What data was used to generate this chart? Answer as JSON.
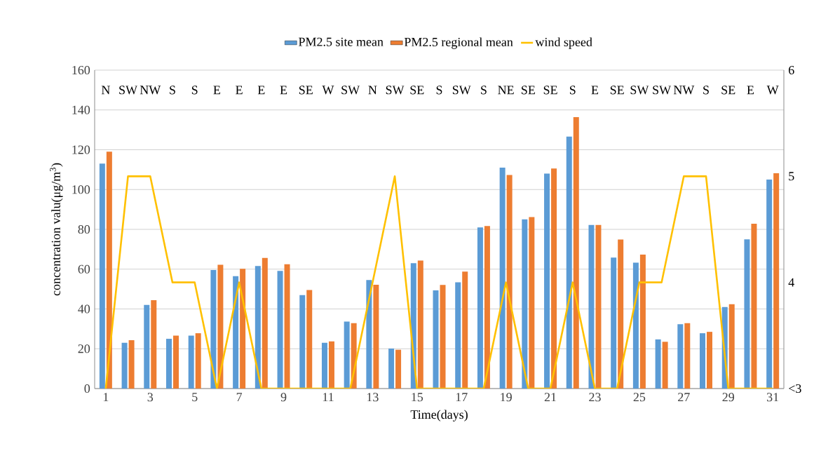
{
  "chart_data": {
    "type": "bar",
    "xlabel": "Time(days)",
    "ylabel": "concentration valu(μg/m$^{3}$)",
    "x": [
      1,
      2,
      3,
      4,
      5,
      6,
      7,
      8,
      9,
      10,
      11,
      12,
      13,
      14,
      15,
      16,
      17,
      18,
      19,
      20,
      21,
      22,
      23,
      24,
      25,
      26,
      27,
      28,
      29,
      30,
      31
    ],
    "xlim": [
      0.5,
      31.5
    ],
    "xticks": [
      1,
      3,
      5,
      7,
      9,
      11,
      13,
      15,
      17,
      19,
      21,
      23,
      25,
      27,
      29,
      31
    ],
    "ylim": [
      0,
      160
    ],
    "yticks": [
      0,
      20,
      40,
      60,
      80,
      100,
      120,
      140,
      160
    ],
    "y2lim": [
      3,
      6
    ],
    "y2ticks": [
      {
        "value": 3,
        "label": "<3"
      },
      4,
      5,
      6
    ],
    "grid": "y",
    "legend": "top",
    "series": [
      {
        "name": "PM2.5 site mean",
        "color": "#5b9bd5",
        "values": [
          113,
          23,
          42,
          25,
          26.6,
          59.6,
          56.5,
          61.6,
          59.1,
          47,
          23,
          33.7,
          54.5,
          20.1,
          63,
          49.3,
          53.4,
          81,
          111,
          85,
          108,
          126.6,
          82.2,
          65.8,
          63.3,
          24.7,
          32.3,
          27.8,
          41,
          75,
          105
        ]
      },
      {
        "name": "PM2.5 regional mean",
        "color": "#ed7d31",
        "values": [
          119,
          24.3,
          44.4,
          26.6,
          27.8,
          62.2,
          60.2,
          65.6,
          62.5,
          49.5,
          23.7,
          32.9,
          52.2,
          19.5,
          64.3,
          52.1,
          58.8,
          81.7,
          107.3,
          86.2,
          110.6,
          136.4,
          82.2,
          74.9,
          67.3,
          23.5,
          32.9,
          28.5,
          42.4,
          82.8,
          108.2
        ]
      },
      {
        "name": "wind speed",
        "type": "line",
        "axis": "y2",
        "color": "#ffc000",
        "values": [
          3,
          5,
          5,
          4,
          4,
          3,
          4,
          3,
          3,
          3,
          3,
          3,
          4,
          5,
          3,
          3,
          3,
          3,
          4,
          3,
          3,
          4,
          3,
          3,
          4,
          4,
          5,
          5,
          3,
          3,
          3
        ]
      }
    ],
    "annotations": [
      "N",
      "SW",
      "NW",
      "S",
      "S",
      "E",
      "E",
      "E",
      "E",
      "SE",
      "W",
      "SW",
      "N",
      "SW",
      "SE",
      "S",
      "SW",
      "S",
      "NE",
      "SE",
      "SE",
      "S",
      "E",
      "SE",
      "SW",
      "SW",
      "NW",
      "S",
      "SE",
      "E",
      "W"
    ]
  }
}
